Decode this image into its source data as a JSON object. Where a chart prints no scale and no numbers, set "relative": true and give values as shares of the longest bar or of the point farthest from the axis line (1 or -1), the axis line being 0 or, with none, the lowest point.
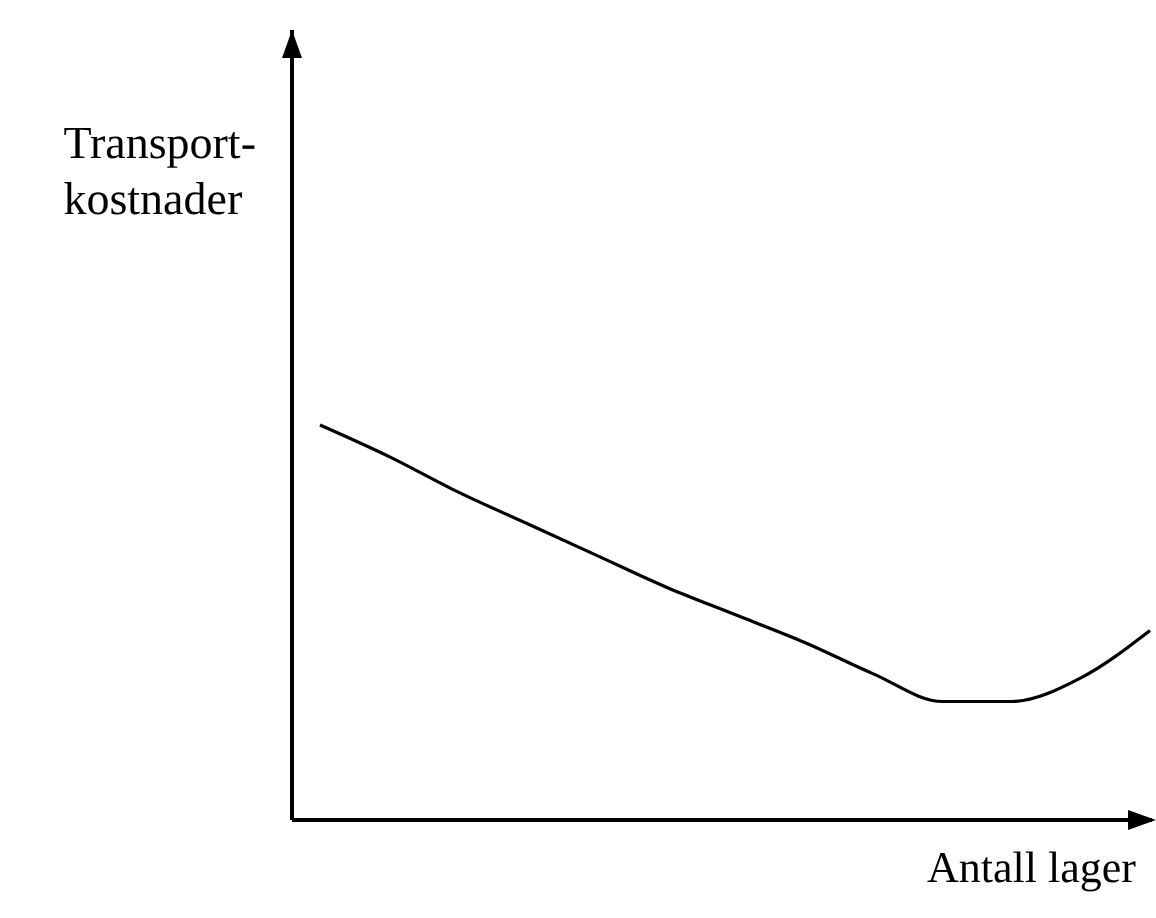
{
  "chart_data": {
    "type": "line",
    "relative": true,
    "xlabel": "Antall lager",
    "ylabel": "Transport-\nkostnader",
    "categories": [
      null,
      null,
      null,
      null,
      null,
      null,
      null,
      null,
      null,
      null,
      null,
      null,
      null
    ],
    "series": [
      {
        "color": "#000000",
        "values": [
          1,
          0.92,
          0.83,
          0.75,
          0.67,
          0.59,
          0.52,
          0.45,
          0.37,
          0.3,
          0.3,
          0.36,
          0.48
        ]
      }
    ],
    "marker": "none",
    "line_style": "solid"
  }
}
